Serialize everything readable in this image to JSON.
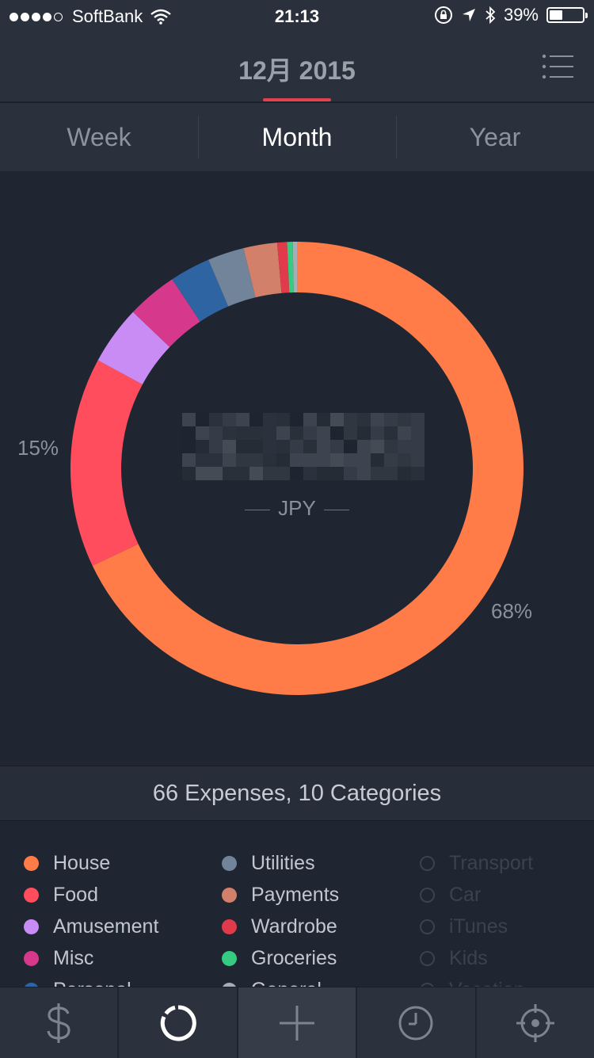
{
  "status_bar": {
    "carrier": "SoftBank",
    "time": "21:13",
    "battery_percent": "39%",
    "battery_level": 0.39
  },
  "header": {
    "title": "12月 2015",
    "menu_icon": "list-icon"
  },
  "segments": [
    {
      "label": "Week",
      "active": false
    },
    {
      "label": "Month",
      "active": true
    },
    {
      "label": "Year",
      "active": false
    }
  ],
  "chart_data": {
    "type": "pie",
    "donut": true,
    "slices": [
      {
        "name": "House",
        "value": 68,
        "color": "#ff7b48"
      },
      {
        "name": "Food",
        "value": 15,
        "color": "#ff4d5e"
      },
      {
        "name": "Amusement",
        "value": 4.2,
        "color": "#c98cf5"
      },
      {
        "name": "Misc",
        "value": 3.6,
        "color": "#d6398b"
      },
      {
        "name": "Personal",
        "value": 2.9,
        "color": "#2f64a2"
      },
      {
        "name": "Utilities",
        "value": 2.6,
        "color": "#72849a"
      },
      {
        "name": "Payments",
        "value": 2.4,
        "color": "#d3806a"
      },
      {
        "name": "Wardrobe",
        "value": 0.7,
        "color": "#e03a4b"
      },
      {
        "name": "Groceries",
        "value": 0.4,
        "color": "#35cb80"
      },
      {
        "name": "General",
        "value": 0.3,
        "color": "#a7adb6"
      }
    ],
    "labels": [
      {
        "text": "68%",
        "slice": "House"
      },
      {
        "text": "15%",
        "slice": "Food"
      }
    ],
    "center_currency": "JPY"
  },
  "summary": "66 Expenses, 10 Categories",
  "legend": {
    "columns": [
      [
        {
          "label": "House",
          "color": "#ff7b48",
          "enabled": true
        },
        {
          "label": "Food",
          "color": "#ff4d5e",
          "enabled": true
        },
        {
          "label": "Amusement",
          "color": "#c98cf5",
          "enabled": true
        },
        {
          "label": "Misc",
          "color": "#d6398b",
          "enabled": true
        },
        {
          "label": "Personal",
          "color": "#2f64a2",
          "enabled": true
        }
      ],
      [
        {
          "label": "Utilities",
          "color": "#72849a",
          "enabled": true
        },
        {
          "label": "Payments",
          "color": "#d3806a",
          "enabled": true
        },
        {
          "label": "Wardrobe",
          "color": "#e03a4b",
          "enabled": true
        },
        {
          "label": "Groceries",
          "color": "#35cb80",
          "enabled": true
        },
        {
          "label": "General",
          "color": "#a7adb6",
          "enabled": true
        }
      ],
      [
        {
          "label": "Transport",
          "color": "",
          "enabled": false
        },
        {
          "label": "Car",
          "color": "",
          "enabled": false
        },
        {
          "label": "iTunes",
          "color": "",
          "enabled": false
        },
        {
          "label": "Kids",
          "color": "",
          "enabled": false
        },
        {
          "label": "Vacation",
          "color": "",
          "enabled": false
        }
      ]
    ]
  },
  "tabbar": [
    {
      "icon": "dollar-icon",
      "selected": false
    },
    {
      "icon": "chart-ring-icon",
      "selected": false
    },
    {
      "icon": "plus-icon",
      "selected": true
    },
    {
      "icon": "clock-icon",
      "selected": false
    },
    {
      "icon": "location-icon",
      "selected": false
    }
  ]
}
